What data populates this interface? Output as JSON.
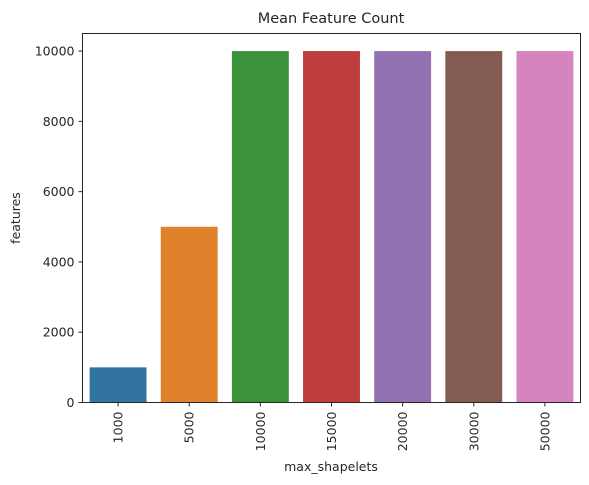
{
  "chart_data": {
    "type": "bar",
    "title": "Mean Feature Count",
    "xlabel": "max_shapelets",
    "ylabel": "features",
    "categories": [
      "1000",
      "5000",
      "10000",
      "15000",
      "20000",
      "30000",
      "50000"
    ],
    "values": [
      1000,
      5000,
      10000,
      10000,
      10000,
      10000,
      10000
    ],
    "colors": [
      "#3274a1",
      "#e1812c",
      "#3a923a",
      "#c03d3e",
      "#9372b2",
      "#845b53",
      "#d684bd"
    ],
    "ylim": [
      0,
      10500
    ],
    "yticks": [
      "0",
      "2000",
      "4000",
      "6000",
      "8000",
      "10000"
    ],
    "grid": false
  }
}
